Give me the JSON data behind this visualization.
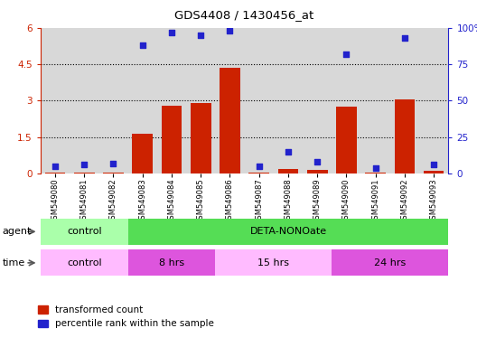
{
  "title": "GDS4408 / 1430456_at",
  "samples": [
    "GSM549080",
    "GSM549081",
    "GSM549082",
    "GSM549083",
    "GSM549084",
    "GSM549085",
    "GSM549086",
    "GSM549087",
    "GSM549088",
    "GSM549089",
    "GSM549090",
    "GSM549091",
    "GSM549092",
    "GSM549093"
  ],
  "red_bars": [
    0.05,
    0.05,
    0.05,
    1.65,
    2.8,
    2.9,
    4.35,
    0.05,
    0.2,
    0.15,
    2.75,
    0.05,
    3.05,
    0.1
  ],
  "blue_dots_pct": [
    5,
    6,
    7,
    88,
    97,
    95,
    98,
    5,
    15,
    8,
    82,
    4,
    93,
    6
  ],
  "ylim_left": [
    0,
    6
  ],
  "ylim_right": [
    0,
    100
  ],
  "yticks_left": [
    0,
    1.5,
    3,
    4.5,
    6
  ],
  "yticks_right": [
    0,
    25,
    50,
    75,
    100
  ],
  "ytick_labels_left": [
    "0",
    "1.5",
    "3",
    "4.5",
    "6"
  ],
  "ytick_labels_right": [
    "0",
    "25",
    "50",
    "75",
    "100%"
  ],
  "hlines": [
    1.5,
    3.0,
    4.5
  ],
  "color_red_bar": "#cc2200",
  "color_blue_dot": "#2222cc",
  "color_control_agent": "#aaffaa",
  "color_deta_agent": "#55dd55",
  "color_control_time": "#ffbbff",
  "color_time_other": "#dd55dd",
  "color_sample_bg": "#d8d8d8",
  "legend_red": "transformed count",
  "legend_blue": "percentile rank within the sample",
  "bar_width": 0.7,
  "n_control_samples": 3,
  "n_8hrs_samples": 3,
  "n_15hrs_samples": 4,
  "n_24hrs_samples": 4
}
